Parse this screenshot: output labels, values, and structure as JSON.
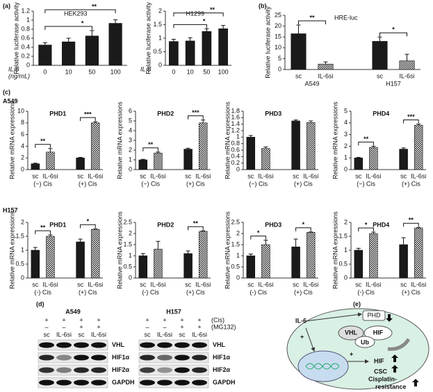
{
  "panel_labels": {
    "a": "(a)",
    "b": "(b)",
    "c": "(c)",
    "d": "(d)",
    "e": "(e)",
    "row1": "A549",
    "row2": "H157"
  },
  "chart_data": [
    {
      "type": "bar",
      "title": "HEK293",
      "y_label": "Relative luciferase activity",
      "x_label": [
        "IL-6",
        "(ng/mL)"
      ],
      "categories": [
        "0",
        "10",
        "50",
        "100"
      ],
      "values": [
        0.45,
        0.52,
        0.65,
        0.93
      ],
      "errors": [
        0.05,
        0.08,
        0.12,
        0.08
      ],
      "fills": [
        "solid",
        "solid",
        "solid",
        "solid"
      ],
      "color": "#1a1a1a",
      "ylim": [
        0,
        1.2
      ],
      "yticks": [
        0,
        0.2,
        0.4,
        0.6,
        0.8,
        1,
        1.2
      ],
      "significance": [
        {
          "span": [
            0,
            2
          ],
          "label": "*"
        },
        {
          "span": [
            0,
            3
          ],
          "label": "**"
        }
      ]
    },
    {
      "type": "bar",
      "title": "H1299",
      "y_label": "Relative luciferase activity",
      "x_label": [
        "IL-6"
      ],
      "categories": [
        "0",
        "10",
        "50",
        "100"
      ],
      "values": [
        0.88,
        0.9,
        1.25,
        1.35
      ],
      "errors": [
        0.08,
        0.12,
        0.1,
        0.12
      ],
      "fills": [
        "solid",
        "solid",
        "solid",
        "solid"
      ],
      "color": "#1a1a1a",
      "ylim": [
        0,
        2
      ],
      "yticks": [
        0,
        0.5,
        1,
        1.5,
        2
      ],
      "significance": [
        {
          "span": [
            0,
            2
          ],
          "label": "*"
        },
        {
          "span": [
            0,
            3
          ],
          "label": "**"
        }
      ]
    },
    {
      "type": "bar",
      "title": "HRE-luc",
      "y_label": "Relative luciferase activity",
      "categories": [
        "sc",
        "IL-6si",
        "sc",
        "IL-6si"
      ],
      "groups": [
        "A549",
        "H157"
      ],
      "values": [
        16.5,
        2.5,
        13,
        4
      ],
      "errors": [
        4,
        1,
        2,
        3
      ],
      "fills": [
        "solid",
        "checker",
        "solid",
        "checker"
      ],
      "color": "#1a1a1a",
      "ylim": [
        0,
        25
      ],
      "yticks": [
        0,
        5,
        10,
        15,
        20,
        25
      ],
      "significance": [
        {
          "span": [
            0,
            1
          ],
          "label": "**"
        },
        {
          "span": [
            2,
            3
          ],
          "label": "*"
        }
      ]
    },
    {
      "type": "bar",
      "title": "PHD1",
      "y_label": "Relative mRNA expressions",
      "categories": [
        "sc",
        "IL-6si",
        "sc",
        "IL-6si"
      ],
      "groups": [
        "(−) Cis",
        "(+) Cis"
      ],
      "values": [
        1,
        3,
        2,
        8
      ],
      "errors": [
        0.1,
        0.6,
        0.1,
        0.2
      ],
      "fills": [
        "solid",
        "checker",
        "solid",
        "checker"
      ],
      "color": "#1a1a1a",
      "ylim": [
        0,
        10
      ],
      "yticks": [
        0,
        2,
        4,
        6,
        8,
        10
      ],
      "significance": [
        {
          "span": [
            0,
            1
          ],
          "label": "**"
        },
        {
          "span": [
            2,
            3
          ],
          "label": "***"
        }
      ]
    },
    {
      "type": "bar",
      "title": "PHD2",
      "y_label": "Relative mRNA expressions",
      "categories": [
        "sc",
        "IL-6si",
        "sc",
        "IL-6si"
      ],
      "groups": [
        "(−) Cis",
        "(+) Cis"
      ],
      "values": [
        1,
        1.7,
        2.1,
        4.8
      ],
      "errors": [
        0.05,
        0.1,
        0.1,
        0.3
      ],
      "fills": [
        "solid",
        "checker",
        "solid",
        "checker"
      ],
      "color": "#1a1a1a",
      "ylim": [
        0,
        6
      ],
      "yticks": [
        0,
        1,
        2,
        3,
        4,
        5,
        6
      ],
      "significance": [
        {
          "span": [
            0,
            1
          ],
          "label": "**"
        },
        {
          "span": [
            2,
            3
          ],
          "label": "***"
        }
      ]
    },
    {
      "type": "bar",
      "title": "PHD3",
      "y_label": "Relative mRNA expressions",
      "categories": [
        "sc",
        "IL-6si",
        "sc",
        "IL-6si"
      ],
      "groups": [
        "(−) Cis",
        "(+) Cis"
      ],
      "values": [
        1,
        0.65,
        1.5,
        1.45
      ],
      "errors": [
        0.05,
        0.05,
        0.03,
        0.05
      ],
      "fills": [
        "solid",
        "checker",
        "solid",
        "checker"
      ],
      "color": "#1a1a1a",
      "ylim": [
        0,
        1.8
      ],
      "yticks": [
        0,
        0.2,
        0.4,
        0.6,
        0.8,
        1,
        1.2,
        1.4,
        1.6,
        1.8
      ],
      "significance": []
    },
    {
      "type": "bar",
      "title": "PHD4",
      "y_label": "Relative mRNA expressions",
      "categories": [
        "sc",
        "IL-6si",
        "sc",
        "IL-6si"
      ],
      "groups": [
        "(−) Cis",
        "(+) Cis"
      ],
      "values": [
        1,
        1.9,
        1.75,
        3.8
      ],
      "errors": [
        0.05,
        0.1,
        0.1,
        0.1
      ],
      "fills": [
        "solid",
        "checker",
        "solid",
        "checker"
      ],
      "color": "#1a1a1a",
      "ylim": [
        0,
        5
      ],
      "yticks": [
        0,
        1,
        2,
        3,
        4,
        5
      ],
      "significance": [
        {
          "span": [
            0,
            1
          ],
          "label": "**"
        },
        {
          "span": [
            2,
            3
          ],
          "label": "***"
        }
      ]
    },
    {
      "type": "bar",
      "title": "PHD1",
      "y_label": "Relative mRNA expressions",
      "categories": [
        "sc",
        "IL-6si",
        "sc",
        "IL-6si"
      ],
      "groups": [
        "(-) Cis",
        "(+) Cis"
      ],
      "values": [
        1,
        1.5,
        1.3,
        1.75
      ],
      "errors": [
        0.1,
        0.05,
        0.1,
        0.02
      ],
      "fills": [
        "solid",
        "checker",
        "solid",
        "checker"
      ],
      "color": "#1a1a1a",
      "ylim": [
        0,
        2
      ],
      "yticks": [
        0,
        0.5,
        1,
        1.5,
        2
      ],
      "significance": [
        {
          "span": [
            0,
            1
          ],
          "label": "**"
        },
        {
          "span": [
            2,
            3
          ],
          "label": "*"
        }
      ]
    },
    {
      "type": "bar",
      "title": "PHD2",
      "y_label": "Relative mRNA expressions",
      "categories": [
        "sc",
        "IL-6si",
        "sc",
        "IL-6si"
      ],
      "groups": [
        "(-) Cis",
        "(+) Cis"
      ],
      "values": [
        1,
        1.3,
        1.1,
        2.1
      ],
      "errors": [
        0.1,
        0.35,
        0.12,
        0.02
      ],
      "fills": [
        "solid",
        "checker",
        "solid",
        "checker"
      ],
      "color": "#1a1a1a",
      "ylim": [
        0,
        2.5
      ],
      "yticks": [
        0,
        0.5,
        1,
        1.5,
        2,
        2.5
      ],
      "significance": [
        {
          "span": [
            2,
            3
          ],
          "label": "**"
        }
      ]
    },
    {
      "type": "bar",
      "title": "PHD3",
      "y_label": "Relative mRNA expressions",
      "categories": [
        "sc",
        "IL-6si",
        "sc",
        "IL-6si"
      ],
      "groups": [
        "(-) Cis",
        "(+) Cis"
      ],
      "values": [
        1,
        1.5,
        1.4,
        2.05
      ],
      "errors": [
        0.08,
        0.2,
        0.35,
        0.02
      ],
      "fills": [
        "solid",
        "checker",
        "solid",
        "checker"
      ],
      "color": "#1a1a1a",
      "ylim": [
        0,
        2.5
      ],
      "yticks": [
        0,
        0.5,
        1,
        1.5,
        2,
        2.5
      ],
      "significance": [
        {
          "span": [
            0,
            1
          ],
          "label": "*"
        },
        {
          "span": [
            2,
            3
          ],
          "label": "*"
        }
      ]
    },
    {
      "type": "bar",
      "title": "PHD4",
      "y_label": "Relative mRNA expressions",
      "categories": [
        "sc",
        "IL-6si",
        "sc",
        "IL-6si"
      ],
      "groups": [
        "(-) Cis",
        "(+) Cis"
      ],
      "values": [
        1,
        1.6,
        1.2,
        1.8
      ],
      "errors": [
        0.07,
        0.05,
        0.25,
        0.02
      ],
      "fills": [
        "solid",
        "checker",
        "solid",
        "checker"
      ],
      "color": "#1a1a1a",
      "ylim": [
        0,
        2
      ],
      "yticks": [
        0,
        0.5,
        1,
        1.5,
        2
      ],
      "significance": [
        {
          "span": [
            0,
            1
          ],
          "label": "*"
        },
        {
          "span": [
            2,
            3
          ],
          "label": "**"
        }
      ]
    }
  ],
  "blots": [
    {
      "cell": "A549",
      "treatments": [
        {
          "marks": [
            "+",
            "+",
            "+",
            "+"
          ]
        },
        {
          "marks": [
            "–",
            "–",
            "+",
            "+"
          ]
        }
      ],
      "lanes": [
        "sc",
        "IL-6si",
        "sc",
        "IL-6si"
      ],
      "proteins": [
        "VHL",
        "HIF1α",
        "HIF2α",
        "GAPDH"
      ]
    },
    {
      "cell": "H157",
      "treatments": [
        {
          "name": "(Cis)",
          "marks": [
            "+",
            "+",
            "+",
            "+"
          ]
        },
        {
          "name": "(MG132)",
          "marks": [
            "–",
            "–",
            "+",
            "+"
          ]
        }
      ],
      "lanes": [
        "sc",
        "IL-6si",
        "sc",
        "IL-6si"
      ],
      "proteins": [
        "VHL",
        "HIF1α",
        "HIF2α",
        "GAPDH"
      ]
    }
  ],
  "diagram": {
    "il6": "IL-6",
    "plus1": "+",
    "phd": "PHD",
    "vhl": "VHL",
    "hif": "HIF",
    "ub": "Ub",
    "plus2": "+",
    "hif_out": "HIF",
    "csc": "CSC",
    "cis1": "Cisplatin-",
    "cis2": "resistance"
  }
}
